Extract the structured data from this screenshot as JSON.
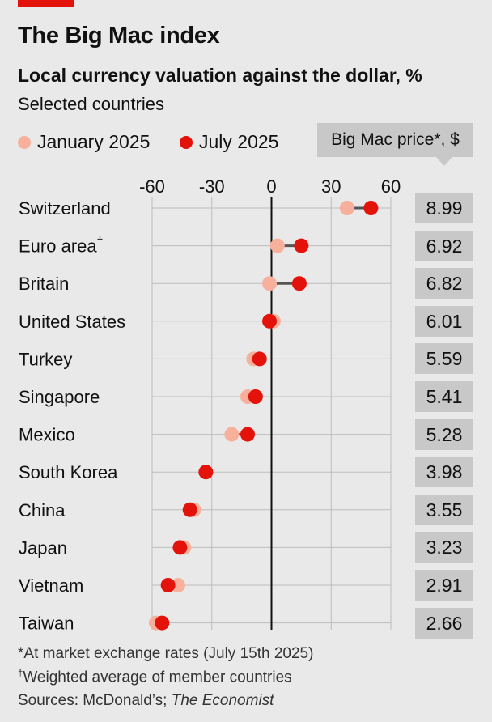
{
  "header": {
    "title": "The Big Mac index",
    "subtitle": "Local currency valuation against the dollar, %",
    "subtitle2": "Selected countries"
  },
  "legend": {
    "january": "January 2025",
    "july": "July 2025"
  },
  "price_header": "Big Mac price*, $",
  "colors": {
    "january": "#f7b09b",
    "july": "#e3120b",
    "connector": "#555555",
    "grid": "#bdbdbd",
    "zero_line": "#111111",
    "accent": "#e3120b",
    "price_box": "#c8c8c8",
    "background": "#e9e9e9"
  },
  "chart_data": {
    "type": "dot",
    "title": "The Big Mac index",
    "subtitle": "Local currency valuation against the dollar, %",
    "xlim": [
      -60,
      60
    ],
    "xticks": [
      -60,
      -30,
      0,
      30,
      60
    ],
    "xtick_labels": [
      "-60",
      "-30",
      "0",
      "30",
      "60"
    ],
    "series": [
      {
        "name": "January 2025",
        "values": [
          38,
          3,
          -1,
          1,
          -9,
          -12,
          -20,
          -33,
          -39,
          -44,
          -47,
          -58
        ]
      },
      {
        "name": "July 2025",
        "values": [
          50,
          15,
          14,
          -1,
          -6,
          -8,
          -12,
          -33,
          -41,
          -46,
          -52,
          -55
        ]
      }
    ],
    "categories": [
      "Switzerland",
      "Euro area†",
      "Britain",
      "United States",
      "Turkey",
      "Singapore",
      "Mexico",
      "South Korea",
      "China",
      "Japan",
      "Vietnam",
      "Taiwan"
    ],
    "prices": [
      "8.99",
      "6.92",
      "6.82",
      "6.01",
      "5.59",
      "5.41",
      "5.28",
      "3.98",
      "3.55",
      "3.23",
      "2.91",
      "2.66"
    ]
  },
  "footnotes": {
    "asterisk": "*At market exchange rates (July 15th 2025)",
    "dagger_mark": "†",
    "dagger_text": "Weighted average of member countries",
    "sources_prefix": "Sources: McDonald’s; ",
    "sources_italic": "The Economist"
  }
}
